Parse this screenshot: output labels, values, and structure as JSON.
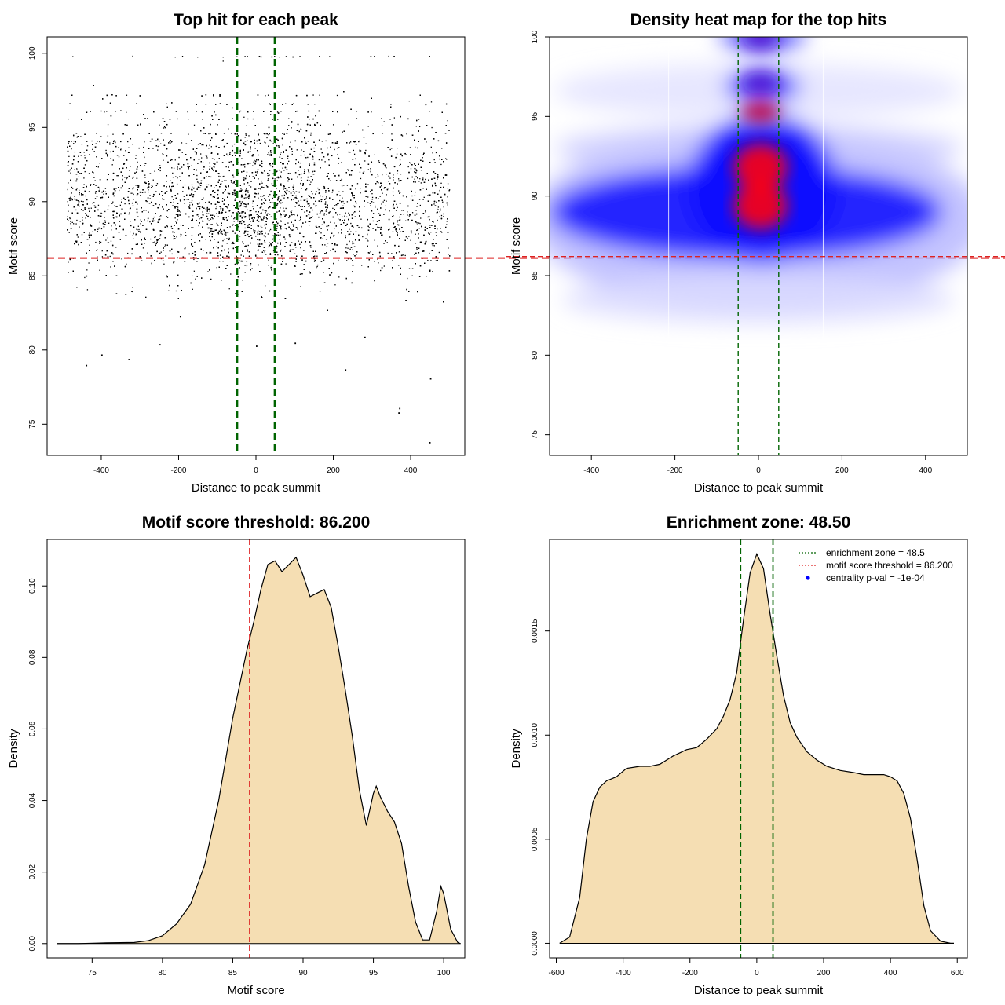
{
  "chart_data": [
    {
      "id": "scatter",
      "type": "scatter",
      "title": "Top hit for each peak",
      "xlabel": "Distance to peak summit",
      "ylabel": "Motif score",
      "xlim": [
        -540,
        540
      ],
      "ylim": [
        72.9,
        101.1
      ],
      "xticks": [
        -400,
        -200,
        0,
        200,
        400
      ],
      "yticks": [
        75,
        80,
        85,
        90,
        95,
        100
      ],
      "hlines": [
        {
          "y": 86.2,
          "color": "#dd2222",
          "label": "motif score threshold"
        }
      ],
      "vlines": [
        {
          "x": -48.5,
          "color": "#006400"
        },
        {
          "x": 48.5,
          "color": "#006400"
        }
      ],
      "note": "Thousands of single-point hits between x=-500 and x=500; densest between scores 86 and 93, discrete score bands above 95.",
      "point_color": "#000000",
      "isolated_points": [
        {
          "x": -440,
          "y": 79.0
        },
        {
          "x": -400,
          "y": 79.7
        },
        {
          "x": -330,
          "y": 79.4
        },
        {
          "x": 0,
          "y": 80.3
        },
        {
          "x": 230,
          "y": 78.7
        },
        {
          "x": 370,
          "y": 76.1
        },
        {
          "x": 368,
          "y": 75.8
        },
        {
          "x": 450,
          "y": 78.1
        },
        {
          "x": 448,
          "y": 73.8
        },
        {
          "x": -250,
          "y": 80.4
        },
        {
          "x": 100,
          "y": 80.5
        },
        {
          "x": 280,
          "y": 80.9
        }
      ]
    },
    {
      "id": "heatmap",
      "type": "heatmap",
      "title": "Density heat map for the top hits",
      "xlabel": "Distance to peak summit",
      "ylabel": "Motif score",
      "xlim": [
        -500,
        500
      ],
      "ylim": [
        73.7,
        100.0
      ],
      "xticks": [
        -400,
        -200,
        0,
        200,
        400
      ],
      "yticks": [
        75,
        80,
        85,
        90,
        95,
        100
      ],
      "colormap": [
        "#ffffff",
        "#0000ff",
        "#ff0000"
      ],
      "hlines": [
        {
          "y": 86.2,
          "color": "#dd2222"
        }
      ],
      "vlines": [
        {
          "x": -48.5,
          "color": "#006400"
        },
        {
          "x": 48.5,
          "color": "#006400"
        }
      ],
      "hotspots": [
        {
          "x": 5,
          "y": 91.8,
          "intensity": 1.0
        },
        {
          "x": 5,
          "y": 89.4,
          "intensity": 0.92
        },
        {
          "x": 5,
          "y": 95.3,
          "intensity": 0.55
        },
        {
          "x": 5,
          "y": 97.1,
          "intensity": 0.35
        },
        {
          "x": 5,
          "y": 99.9,
          "intensity": 0.35
        }
      ]
    },
    {
      "id": "score-density",
      "type": "area",
      "title": "Motif score threshold: 86.200",
      "xlabel": "Motif score",
      "ylabel": "Density",
      "xlim": [
        71.8,
        101.5
      ],
      "ylim": [
        -0.004,
        0.113
      ],
      "xticks": [
        75,
        80,
        85,
        90,
        95,
        100
      ],
      "yticks": [
        0.0,
        0.02,
        0.04,
        0.06,
        0.08,
        0.1
      ],
      "ytick_labels": [
        "0.00",
        "0.02",
        "0.04",
        "0.06",
        "0.08",
        "0.10"
      ],
      "fill": "#f5deb3",
      "vlines": [
        {
          "x": 86.2,
          "color": "#dd2222"
        }
      ],
      "x": [
        72.5,
        74,
        76,
        78,
        79,
        80,
        81,
        82,
        83,
        84,
        85,
        86,
        86.5,
        87,
        87.5,
        88,
        88.5,
        89,
        89.5,
        90,
        90.5,
        91,
        91.5,
        92,
        92.5,
        93,
        93.5,
        94,
        94.5,
        95,
        95.2,
        95.5,
        96,
        96.5,
        97,
        97.5,
        98,
        98.5,
        99,
        99.5,
        99.8,
        100,
        100.5,
        101,
        101.2
      ],
      "values": [
        0.0,
        0.0,
        0.0002,
        0.0003,
        0.0008,
        0.0022,
        0.0055,
        0.011,
        0.022,
        0.04,
        0.063,
        0.082,
        0.09,
        0.099,
        0.106,
        0.107,
        0.104,
        0.106,
        0.108,
        0.103,
        0.097,
        0.098,
        0.099,
        0.094,
        0.083,
        0.071,
        0.058,
        0.043,
        0.033,
        0.042,
        0.044,
        0.041,
        0.037,
        0.034,
        0.028,
        0.016,
        0.006,
        0.001,
        0.001,
        0.009,
        0.016,
        0.014,
        0.004,
        0.0003,
        0.0
      ]
    },
    {
      "id": "distance-density",
      "type": "area",
      "title": "Enrichment zone: 48.50",
      "xlabel": "Distance to peak summit",
      "ylabel": "Density",
      "xlim": [
        -620,
        630
      ],
      "ylim": [
        -7e-05,
        0.00194
      ],
      "xticks": [
        -600,
        -400,
        -200,
        0,
        200,
        400,
        600
      ],
      "yticks": [
        0.0,
        0.0005,
        0.001,
        0.0015
      ],
      "ytick_labels": [
        "0.0000",
        "0.0005",
        "0.0010",
        "0.0015"
      ],
      "fill": "#f5deb3",
      "vlines": [
        {
          "x": -48.5,
          "color": "#006400"
        },
        {
          "x": 48.5,
          "color": "#006400"
        }
      ],
      "x": [
        -590,
        -560,
        -530,
        -510,
        -490,
        -470,
        -450,
        -420,
        -390,
        -350,
        -320,
        -290,
        -250,
        -210,
        -180,
        -150,
        -120,
        -100,
        -80,
        -60,
        -40,
        -20,
        0,
        20,
        40,
        60,
        80,
        100,
        120,
        150,
        180,
        210,
        250,
        290,
        320,
        350,
        380,
        400,
        420,
        440,
        460,
        480,
        500,
        520,
        550,
        580,
        590
      ],
      "values": [
        0.0,
        3e-05,
        0.00022,
        0.0005,
        0.00068,
        0.00075,
        0.00078,
        0.0008,
        0.00084,
        0.00085,
        0.00085,
        0.00086,
        0.0009,
        0.00093,
        0.00094,
        0.00098,
        0.00103,
        0.00109,
        0.00117,
        0.0013,
        0.00155,
        0.00178,
        0.00187,
        0.0018,
        0.00158,
        0.00138,
        0.00119,
        0.00106,
        0.00099,
        0.00092,
        0.00088,
        0.00085,
        0.00083,
        0.00082,
        0.00081,
        0.00081,
        0.00081,
        0.0008,
        0.00078,
        0.00072,
        0.0006,
        0.0004,
        0.00018,
        6e-05,
        1e-05,
        0.0,
        0.0
      ],
      "legend": {
        "position": "top-right",
        "entries": [
          {
            "label": "enrichment zone = 48.5",
            "color": "#006400",
            "style": "dotted-line"
          },
          {
            "label": "motif score threshold = 86.200",
            "color": "#dd2222",
            "style": "dotted-line"
          },
          {
            "label": "centrality p-val = -1e-04",
            "color": "#0000ff",
            "style": "point"
          }
        ]
      }
    }
  ]
}
